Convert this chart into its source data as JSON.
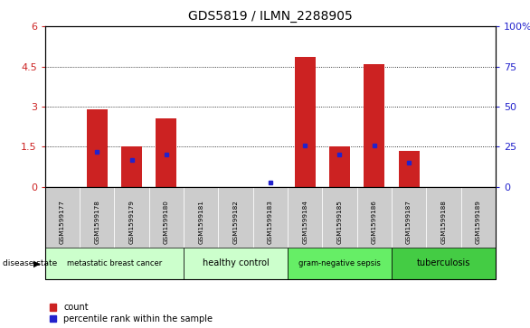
{
  "title": "GDS5819 / ILMN_2288905",
  "samples": [
    "GSM1599177",
    "GSM1599178",
    "GSM1599179",
    "GSM1599180",
    "GSM1599181",
    "GSM1599182",
    "GSM1599183",
    "GSM1599184",
    "GSM1599185",
    "GSM1599186",
    "GSM1599187",
    "GSM1599188",
    "GSM1599189"
  ],
  "counts": [
    0.0,
    2.9,
    1.5,
    2.55,
    0.0,
    0.0,
    0.0,
    4.85,
    1.5,
    4.6,
    1.35,
    0.0,
    0.0
  ],
  "percentile_ranks": [
    0.0,
    22.0,
    17.0,
    20.0,
    0.0,
    0.0,
    3.0,
    26.0,
    20.0,
    26.0,
    15.0,
    0.0,
    0.0
  ],
  "groups": [
    {
      "label": "metastatic breast cancer",
      "indices": [
        0,
        1,
        2,
        3
      ],
      "color": "#ccffcc"
    },
    {
      "label": "healthy control",
      "indices": [
        4,
        5,
        6
      ],
      "color": "#ccffcc"
    },
    {
      "label": "gram-negative sepsis",
      "indices": [
        7,
        8,
        9
      ],
      "color": "#66ee66"
    },
    {
      "label": "tuberculosis",
      "indices": [
        10,
        11,
        12
      ],
      "color": "#44cc44"
    }
  ],
  "ylim_left": [
    0,
    6
  ],
  "ylim_right": [
    0,
    100
  ],
  "yticks_left": [
    0,
    1.5,
    3.0,
    4.5,
    6.0
  ],
  "ytick_labels_left": [
    "0",
    "1.5",
    "3",
    "4.5",
    "6"
  ],
  "yticks_right": [
    0,
    25,
    50,
    75,
    100
  ],
  "ytick_labels_right": [
    "0",
    "25",
    "50",
    "75",
    "100%"
  ],
  "bar_color": "#cc2222",
  "dot_color": "#2222cc",
  "tick_bg_color": "#cccccc",
  "disease_label": "disease state",
  "legend_count": "count",
  "legend_percentile": "percentile rank within the sample"
}
